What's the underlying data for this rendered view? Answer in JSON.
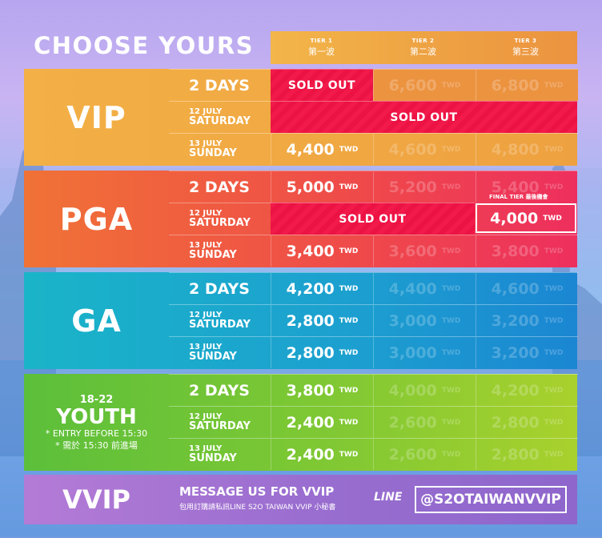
{
  "title": "CHOOSE YOURS",
  "tiers": [
    {
      "en": "TIER 1",
      "zh": "第一波"
    },
    {
      "en": "TIER 2",
      "zh": "第二波"
    },
    {
      "en": "TIER 3",
      "zh": "第三波"
    }
  ],
  "currency": "TWD",
  "sold_out": "SOLD OUT",
  "sections": [
    {
      "name": "VIP",
      "rows": [
        {
          "l1": "2 DAYS",
          "l2": "",
          "t1": "SOLD OUT",
          "t2": "6,600",
          "t3": "6,800"
        },
        {
          "l1": "12 JULY",
          "l2": "SATURDAY",
          "span": "SOLD OUT"
        },
        {
          "l1": "13 JULY",
          "l2": "SUNDAY",
          "t1": "4,400",
          "t2": "4,600",
          "t3": "4,800"
        }
      ]
    },
    {
      "name": "PGA",
      "rows": [
        {
          "l1": "2 DAYS",
          "l2": "",
          "t1": "5,000",
          "t2": "5,200",
          "t3": "5,400"
        },
        {
          "l1": "12 JULY",
          "l2": "SATURDAY",
          "span": "SOLD OUT",
          "final_tag": "FINAL TIER  最後機會",
          "final_price": "4,000"
        },
        {
          "l1": "13 JULY",
          "l2": "SUNDAY",
          "t1": "3,400",
          "t2": "3,600",
          "t3": "3,800"
        }
      ]
    },
    {
      "name": "GA",
      "rows": [
        {
          "l1": "2 DAYS",
          "l2": "",
          "t1": "4,200",
          "t2": "4,400",
          "t3": "4,600"
        },
        {
          "l1": "12 JULY",
          "l2": "SATURDAY",
          "t1": "2,800",
          "t2": "3,000",
          "t3": "3,200"
        },
        {
          "l1": "13 JULY",
          "l2": "SUNDAY",
          "t1": "2,800",
          "t2": "3,000",
          "t3": "3,200"
        }
      ]
    },
    {
      "name": "YOUTH",
      "age": "18-22",
      "note_en": "* ENTRY BEFORE 15:30",
      "note_zh": "* 需於 15:30 前進場",
      "rows": [
        {
          "l1": "2 DAYS",
          "l2": "",
          "t1": "3,800",
          "t2": "4,000",
          "t3": "4,200"
        },
        {
          "l1": "12 JULY",
          "l2": "SATURDAY",
          "t1": "2,400",
          "t2": "2,600",
          "t3": "2,800"
        },
        {
          "l1": "13 JULY",
          "l2": "SUNDAY",
          "t1": "2,400",
          "t2": "2,600",
          "t3": "2,800"
        }
      ]
    }
  ],
  "vvip": {
    "name": "VVIP",
    "message": "MESSAGE US FOR VVIP",
    "message_zh": "包用訂購請私訊LINE S2O TAIWAN VVIP 小秘書",
    "line_logo": "LINE",
    "handle": "@S2OTAIWANVVIP"
  },
  "colors": {
    "vip": "#f0a73f",
    "pga": "#ef6a33",
    "ga": "#1bb0c8",
    "youth": "#62c23a",
    "soldout": "#f21a4a",
    "vvip": "#9a6ed0"
  }
}
